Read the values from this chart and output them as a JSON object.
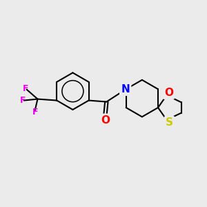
{
  "background_color": "#ebebeb",
  "bond_color": "#000000",
  "bond_width": 1.5,
  "atom_colors": {
    "F": "#ee00ee",
    "O": "#ff0000",
    "N": "#0000ff",
    "S": "#cccc00",
    "C": "#000000"
  },
  "font_size_atoms": 9,
  "figsize": [
    3.0,
    3.0
  ],
  "dpi": 100
}
